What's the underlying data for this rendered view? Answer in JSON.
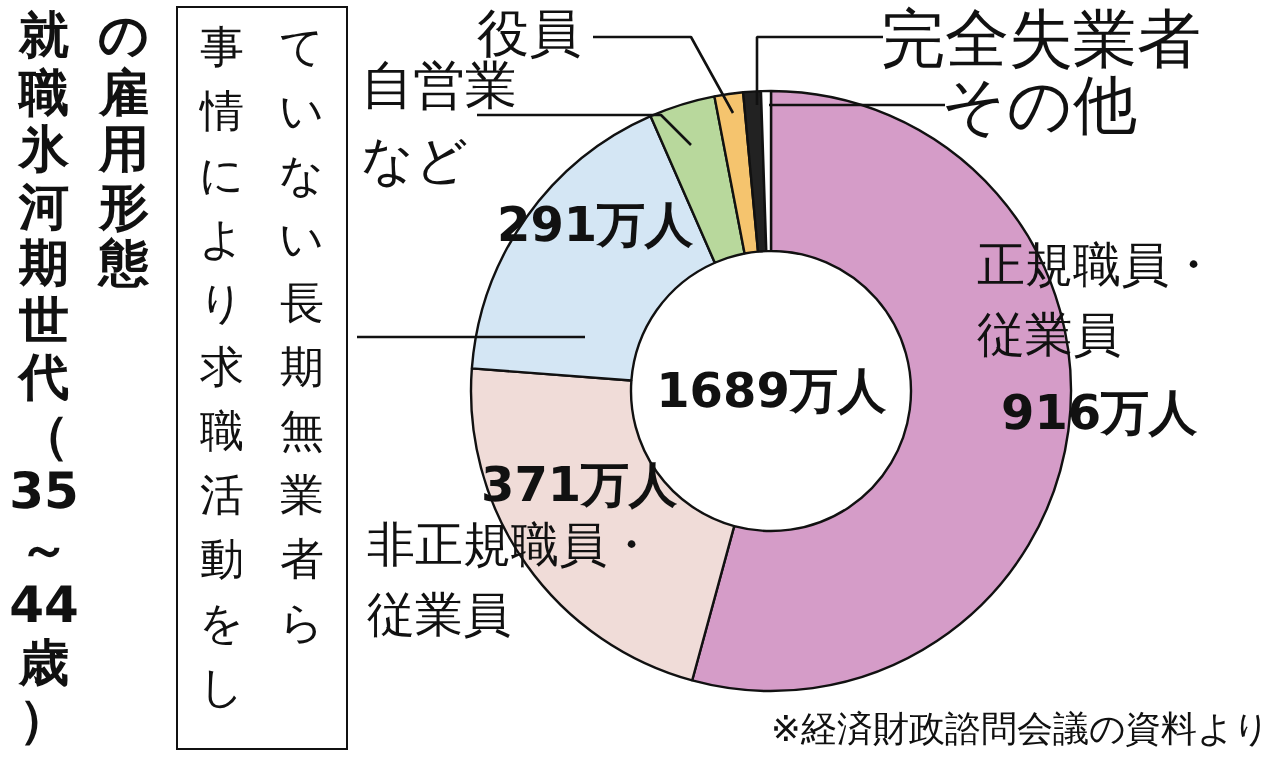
{
  "chart_data": {
    "type": "donut",
    "title": "就職氷河期世代（35～44歳）の雇用形態",
    "categories": [
      "正規職員・従業員",
      "非正規職員・従業員",
      "事情により求職活動をしていない長期無業者ら",
      "自営業など",
      "役員",
      "完全失業者",
      "その他"
    ],
    "values": [
      916,
      371,
      291,
      60,
      26,
      16,
      9
    ],
    "colors": [
      "#d59cc8",
      "#f0dcd8",
      "#d4e6f4",
      "#b8d89c",
      "#f5c46e",
      "#222222",
      "#ffffff"
    ],
    "value_labels": [
      "916万人",
      "371万人",
      "291万人",
      null,
      null,
      null,
      null
    ],
    "annotations": [
      "1689万人",
      "※経済財政諮問会議の資料より"
    ]
  }
}
